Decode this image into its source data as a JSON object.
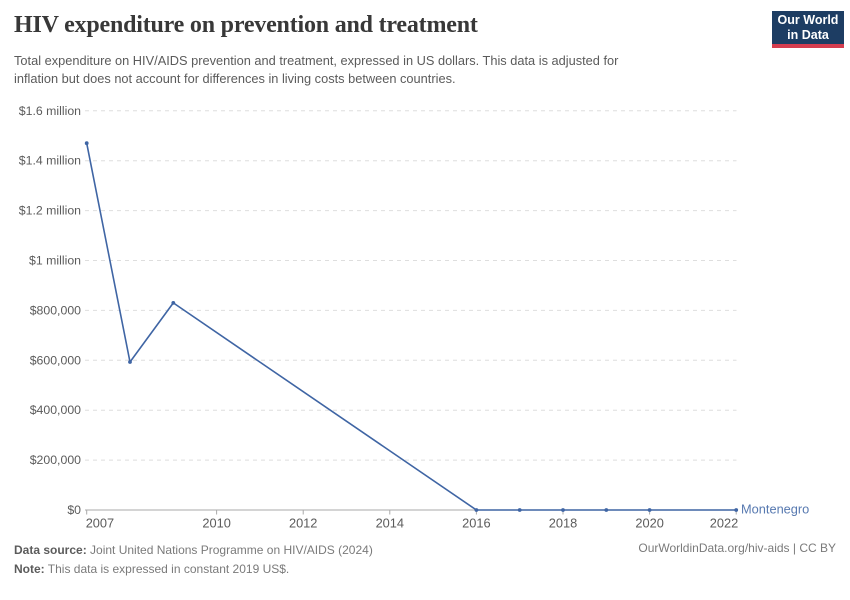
{
  "header": {
    "title": "HIV expenditure on prevention and treatment",
    "logo": {
      "line1": "Our World",
      "line2": "in Data",
      "bg_color": "#1d3d63",
      "accent_color": "#d43d4f"
    }
  },
  "subtitle": "Total expenditure on HIV/AIDS prevention and treatment, expressed in US dollars. This data is adjusted for\ninflation but does not account for differences in living costs between countries.",
  "chart_data": {
    "type": "line",
    "title": "HIV expenditure on prevention and treatment",
    "entity_label": "Montenegro",
    "series": [
      {
        "name": "Montenegro",
        "points": [
          {
            "year": 2007,
            "value": 1470000
          },
          {
            "year": 2008,
            "value": 593000
          },
          {
            "year": 2009,
            "value": 830000
          },
          {
            "year": 2016,
            "value": 0
          },
          {
            "year": 2017,
            "value": 0
          },
          {
            "year": 2018,
            "value": 0
          },
          {
            "year": 2019,
            "value": 0
          },
          {
            "year": 2020,
            "value": 0
          },
          {
            "year": 2022,
            "value": 0
          }
        ]
      }
    ],
    "xlim": [
      2007,
      2022
    ],
    "ylim": [
      0,
      1600000
    ],
    "yticks": [
      {
        "v": 0,
        "label": "$0"
      },
      {
        "v": 200000,
        "label": "$200,000"
      },
      {
        "v": 400000,
        "label": "$400,000"
      },
      {
        "v": 600000,
        "label": "$600,000"
      },
      {
        "v": 800000,
        "label": "$800,000"
      },
      {
        "v": 1000000,
        "label": "$1 million"
      },
      {
        "v": 1200000,
        "label": "$1.2 million"
      },
      {
        "v": 1400000,
        "label": "$1.4 million"
      },
      {
        "v": 1600000,
        "label": "$1.6 million"
      }
    ],
    "xticks": [
      {
        "v": 2007,
        "label": "2007",
        "anchor": "start"
      },
      {
        "v": 2010,
        "label": "2010",
        "anchor": "middle"
      },
      {
        "v": 2012,
        "label": "2012",
        "anchor": "middle"
      },
      {
        "v": 2014,
        "label": "2014",
        "anchor": "middle"
      },
      {
        "v": 2016,
        "label": "2016",
        "anchor": "middle"
      },
      {
        "v": 2018,
        "label": "2018",
        "anchor": "middle"
      },
      {
        "v": 2020,
        "label": "2020",
        "anchor": "middle"
      },
      {
        "v": 2022,
        "label": "2022",
        "anchor": "end"
      }
    ],
    "grid": {
      "horizontal": true,
      "style": "dashed",
      "color": "#dedede"
    },
    "legend_position": "end-of-line-label",
    "colors": {
      "line": "#3f65a4",
      "entity_label": "#5779b0",
      "axis_line": "#a9a9a9",
      "tick_text": "#5b5b5b"
    }
  },
  "footer": {
    "source_label": "Data source:",
    "source_text": " Joint United Nations Programme on HIV/AIDS (2024)",
    "note_label": "Note:",
    "note_text": " This data is expressed in constant 2019 US$.",
    "right_text": "OurWorldinData.org/hiv-aids | CC BY"
  }
}
